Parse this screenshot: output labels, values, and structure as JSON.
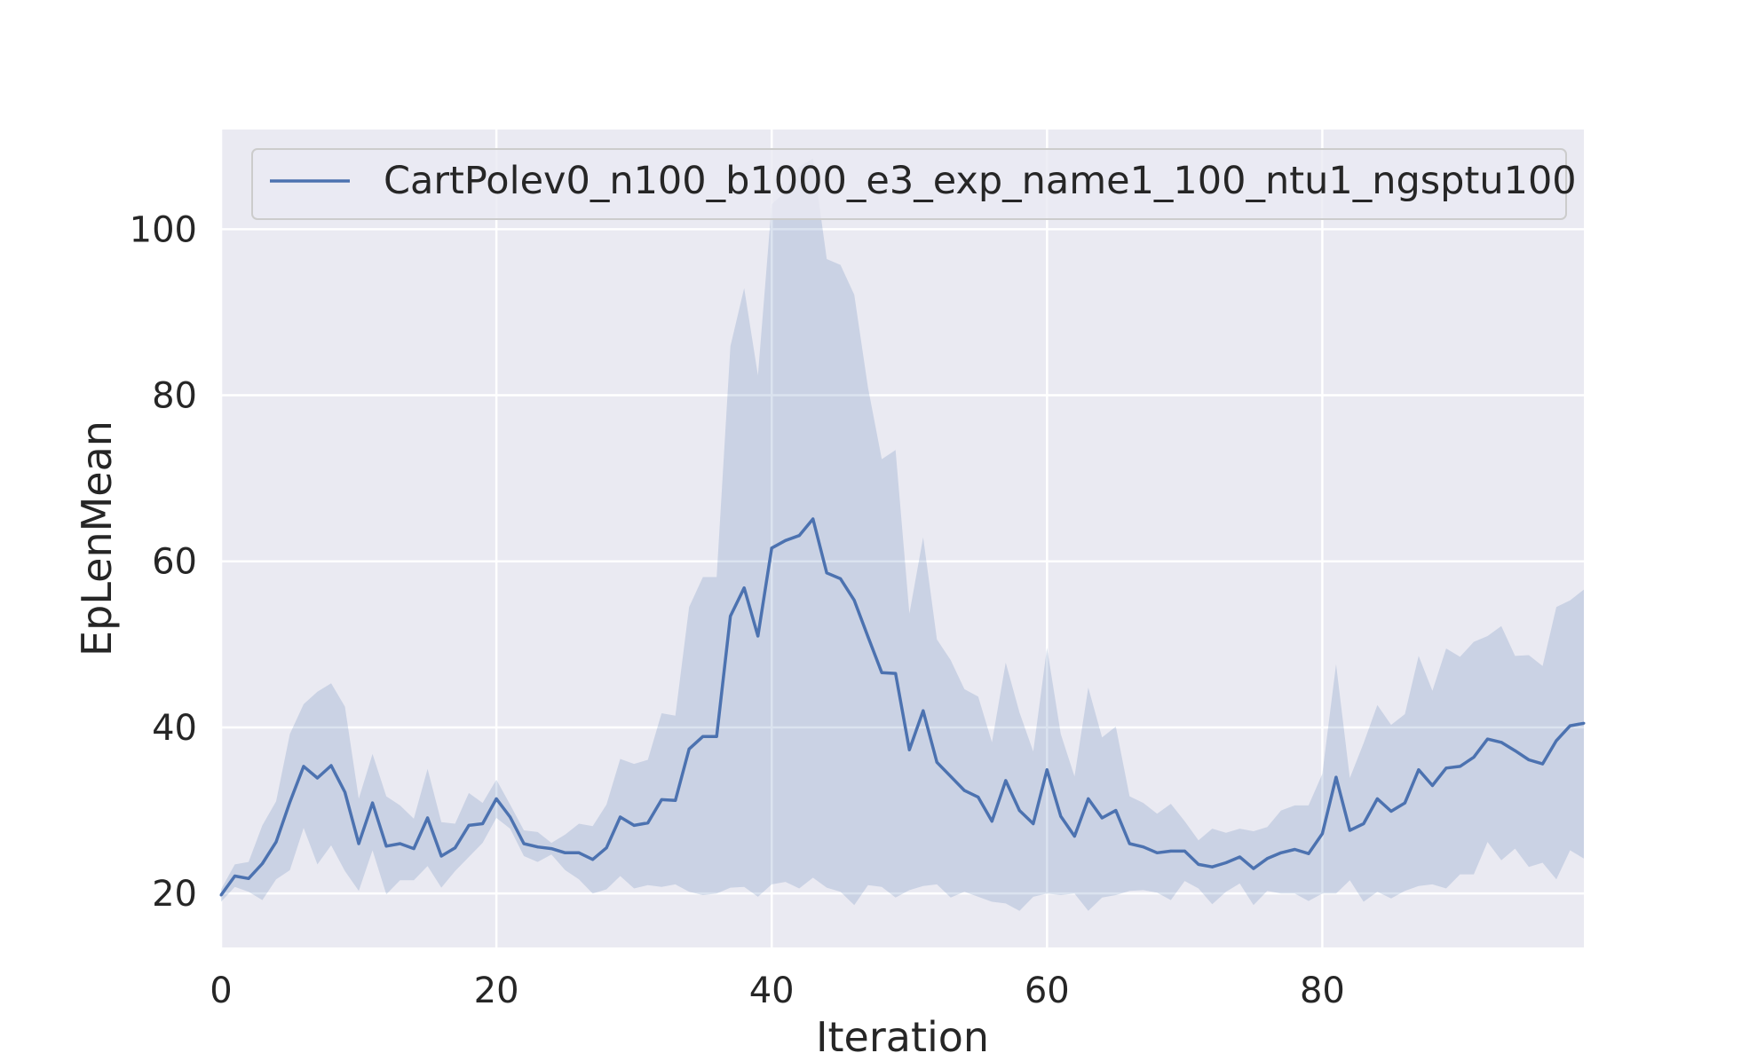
{
  "chart_data": {
    "type": "line",
    "title": "",
    "xlabel": "Iteration",
    "ylabel": "EpLenMean",
    "xlim": [
      0,
      99
    ],
    "ylim": [
      13.5,
      112
    ],
    "x_ticks": [
      0,
      20,
      40,
      60,
      80
    ],
    "y_ticks": [
      20,
      40,
      60,
      80,
      100
    ],
    "grid": true,
    "legend_position": "top",
    "colors": {
      "line": "#4c72b0",
      "band": "#4c72b0",
      "background": "#eaeaf2",
      "grid": "#ffffff"
    },
    "series": [
      {
        "name": "CartPolev0_n100_b1000_e3_exp_name1_100_ntu1_ngsptu100",
        "x": [
          0,
          1,
          2,
          3,
          4,
          5,
          6,
          7,
          8,
          9,
          10,
          11,
          12,
          13,
          14,
          15,
          16,
          17,
          18,
          19,
          20,
          21,
          22,
          23,
          24,
          25,
          26,
          27,
          28,
          29,
          30,
          31,
          32,
          33,
          34,
          35,
          36,
          37,
          38,
          39,
          40,
          41,
          42,
          43,
          44,
          45,
          46,
          47,
          48,
          49,
          50,
          51,
          52,
          53,
          54,
          55,
          56,
          57,
          58,
          59,
          60,
          61,
          62,
          63,
          64,
          65,
          66,
          67,
          68,
          69,
          70,
          71,
          72,
          73,
          74,
          75,
          76,
          77,
          78,
          79,
          80,
          81,
          82,
          83,
          84,
          85,
          86,
          87,
          88,
          89,
          90,
          91,
          92,
          93,
          94,
          95,
          96,
          97,
          98,
          99
        ],
        "y": [
          19.8,
          22.1,
          21.8,
          23.6,
          26.2,
          31.0,
          35.3,
          33.9,
          35.4,
          32.2,
          26.0,
          30.9,
          25.7,
          26.0,
          25.4,
          29.1,
          24.5,
          25.5,
          28.2,
          28.4,
          31.4,
          29.2,
          26.0,
          25.6,
          25.4,
          24.9,
          24.9,
          24.1,
          25.5,
          29.2,
          28.2,
          28.5,
          31.3,
          31.2,
          37.4,
          38.9,
          38.9,
          53.4,
          56.8,
          51.0,
          61.6,
          62.5,
          63.1,
          65.1,
          58.6,
          57.9,
          55.3,
          50.9,
          46.6,
          46.5,
          37.3,
          42.0,
          35.8,
          34.1,
          32.4,
          31.6,
          28.7,
          33.6,
          30.0,
          28.4,
          34.9,
          29.3,
          26.9,
          31.4,
          29.1,
          30.0,
          26.0,
          25.6,
          24.9,
          25.1,
          25.1,
          23.5,
          23.2,
          23.7,
          24.4,
          23.0,
          24.2,
          24.9,
          25.3,
          24.8,
          27.2,
          34.0,
          27.6,
          28.4,
          31.4,
          29.9,
          30.9,
          34.9,
          33.0,
          35.1,
          35.3,
          36.4,
          38.6,
          38.2,
          37.2,
          36.1,
          35.6,
          38.4,
          40.2,
          40.5
        ],
        "y_upper": [
          20.5,
          23.5,
          23.8,
          28.2,
          31.1,
          39.2,
          42.8,
          44.3,
          45.3,
          42.5,
          31.4,
          36.8,
          31.7,
          30.6,
          29.0,
          35.0,
          28.6,
          28.4,
          32.1,
          30.9,
          33.7,
          30.7,
          27.6,
          27.4,
          26.1,
          27.1,
          28.4,
          28.1,
          30.7,
          36.2,
          35.6,
          36.1,
          41.7,
          41.4,
          54.5,
          58.1,
          58.1,
          85.9,
          92.9,
          82.4,
          103.0,
          104.5,
          107.5,
          108.5,
          96.4,
          95.7,
          92.1,
          80.9,
          72.3,
          73.4,
          53.7,
          62.9,
          50.6,
          48.1,
          44.6,
          43.7,
          38.2,
          47.8,
          41.8,
          37.1,
          49.6,
          39.2,
          34.1,
          44.8,
          38.8,
          40.1,
          31.7,
          30.9,
          29.6,
          30.8,
          28.7,
          26.4,
          27.8,
          27.3,
          27.8,
          27.5,
          28.0,
          30.0,
          30.6,
          30.6,
          34.4,
          47.6,
          33.9,
          38.1,
          42.7,
          40.3,
          41.6,
          48.6,
          44.4,
          49.5,
          48.5,
          50.3,
          51.0,
          52.2,
          48.6,
          48.7,
          47.4,
          54.5,
          55.3,
          56.6
        ],
        "y_lower": [
          19.0,
          20.8,
          20.2,
          19.2,
          21.7,
          22.8,
          27.9,
          23.5,
          25.8,
          22.7,
          20.3,
          25.2,
          19.9,
          21.6,
          21.6,
          23.3,
          20.7,
          22.7,
          24.4,
          26.1,
          29.1,
          27.8,
          24.5,
          23.8,
          24.7,
          22.8,
          21.7,
          20.0,
          20.5,
          22.1,
          20.6,
          21.0,
          20.8,
          21.1,
          20.2,
          19.8,
          20.0,
          20.7,
          20.8,
          19.6,
          21.1,
          21.4,
          20.6,
          21.9,
          20.7,
          20.2,
          18.6,
          21.0,
          20.8,
          19.5,
          20.4,
          20.9,
          21.1,
          19.5,
          20.2,
          19.6,
          19.0,
          18.8,
          17.9,
          19.6,
          20.0,
          19.8,
          20.0,
          17.9,
          19.5,
          19.8,
          20.3,
          20.4,
          20.1,
          19.2,
          21.5,
          20.6,
          18.7,
          20.2,
          21.2,
          18.6,
          20.3,
          20.0,
          20.0,
          19.1,
          20.0,
          20.0,
          21.6,
          19.0,
          20.2,
          19.4,
          20.3,
          20.9,
          21.1,
          20.6,
          22.3,
          22.3,
          26.2,
          24.0,
          25.4,
          23.2,
          23.7,
          21.7,
          25.2,
          24.2
        ]
      }
    ]
  }
}
